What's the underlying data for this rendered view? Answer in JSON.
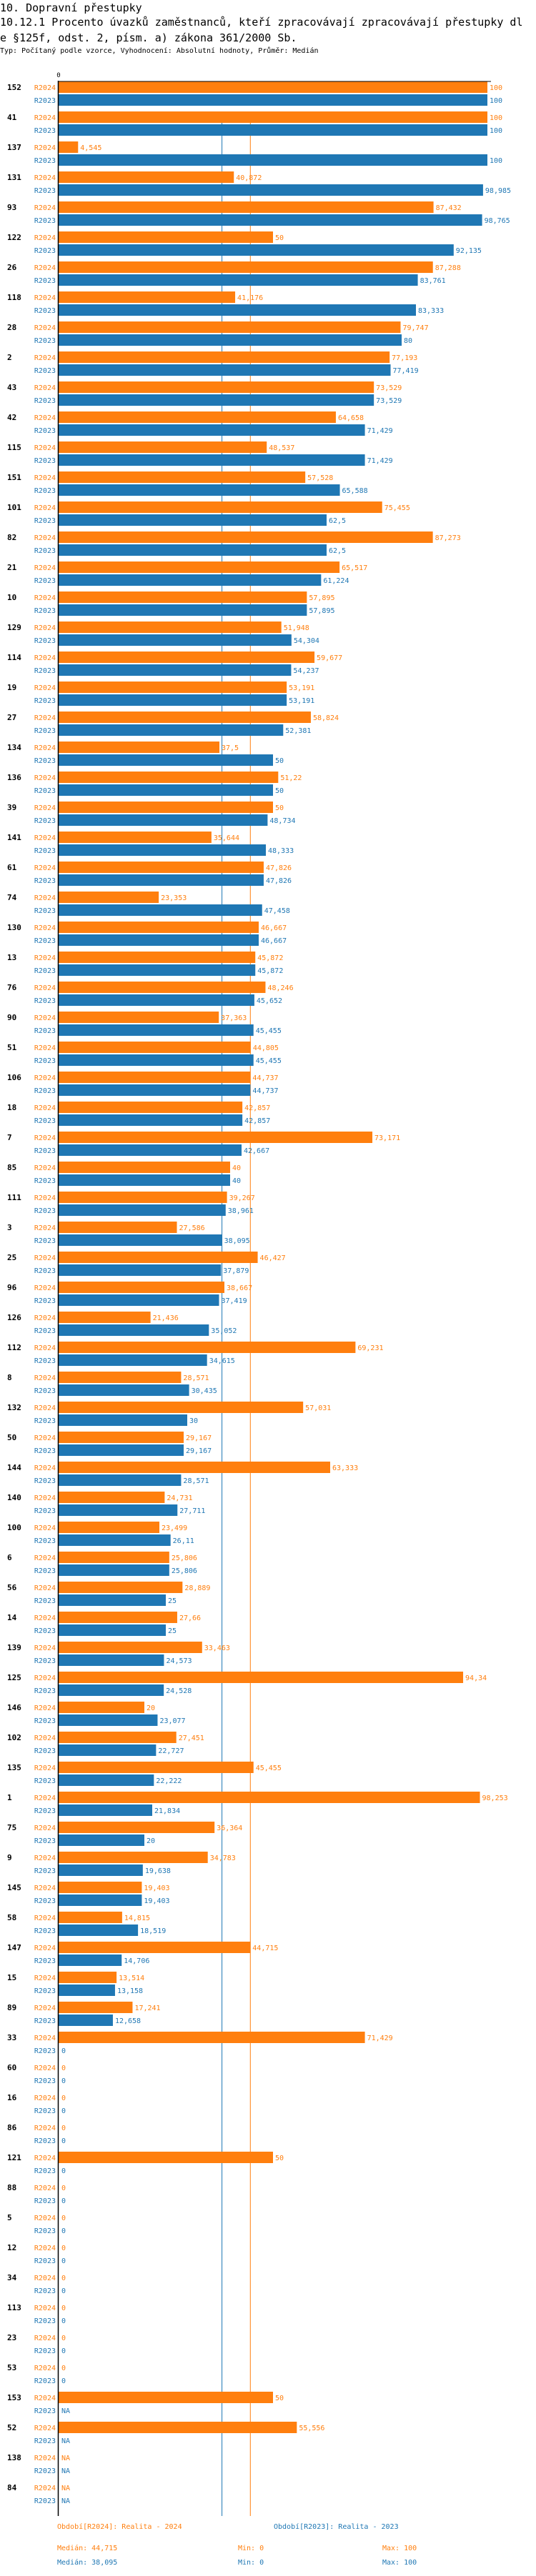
{
  "header": {
    "title": "10. Dopravní přestupky",
    "subtitle": "10.12.1 Procento úvazků zaměstnanců, kteří zpracovávají zpracovávají přestupky dle §125f, odst. 2, písm. a) zákona 361/2000 Sb.",
    "meta": "Typ: Počítaný podle vzorce, Vyhodnocení: Absolutní hodnoty, Průměr: Medián"
  },
  "colors": {
    "R2024": "#ff7f0e",
    "R2023": "#1f77b4",
    "axis": "#000000"
  },
  "chart_data": {
    "type": "bar",
    "orientation": "horizontal",
    "axis_tick_label": "0",
    "xlim": [
      0,
      100
    ],
    "grid": false,
    "categories": [
      "152",
      "41",
      "137",
      "131",
      "93",
      "122",
      "26",
      "118",
      "28",
      "2",
      "43",
      "42",
      "115",
      "151",
      "101",
      "82",
      "21",
      "10",
      "129",
      "114",
      "19",
      "27",
      "134",
      "136",
      "39",
      "141",
      "61",
      "74",
      "130",
      "13",
      "76",
      "90",
      "51",
      "106",
      "18",
      "7",
      "85",
      "111",
      "3",
      "25",
      "96",
      "126",
      "112",
      "8",
      "132",
      "50",
      "144",
      "140",
      "100",
      "6",
      "56",
      "14",
      "139",
      "125",
      "146",
      "102",
      "135",
      "1",
      "75",
      "9",
      "145",
      "58",
      "147",
      "15",
      "89",
      "33",
      "60",
      "16",
      "86",
      "121",
      "88",
      "5",
      "12",
      "34",
      "113",
      "23",
      "53",
      "153",
      "52",
      "138",
      "84"
    ],
    "series": [
      {
        "name": "R2024",
        "values": [
          "100",
          "100",
          "4,545",
          "40,872",
          "87,432",
          "50",
          "87,288",
          "41,176",
          "79,747",
          "77,193",
          "73,529",
          "64,658",
          "48,537",
          "57,528",
          "75,455",
          "87,273",
          "65,517",
          "57,895",
          "51,948",
          "59,677",
          "53,191",
          "58,824",
          "37,5",
          "51,22",
          "50",
          "35,644",
          "47,826",
          "23,353",
          "46,667",
          "45,872",
          "48,246",
          "37,363",
          "44,805",
          "44,737",
          "42,857",
          "73,171",
          "40",
          "39,267",
          "27,586",
          "46,427",
          "38,667",
          "21,436",
          "69,231",
          "28,571",
          "57,031",
          "29,167",
          "63,333",
          "24,731",
          "23,499",
          "25,806",
          "28,889",
          "27,66",
          "33,463",
          "94,34",
          "20",
          "27,451",
          "45,455",
          "98,253",
          "36,364",
          "34,783",
          "19,403",
          "14,815",
          "44,715",
          "13,514",
          "17,241",
          "71,429",
          "0",
          "0",
          "0",
          "50",
          "0",
          "0",
          "0",
          "0",
          "0",
          "0",
          "0",
          "50",
          "55,556",
          "NA",
          "NA"
        ]
      },
      {
        "name": "R2023",
        "values": [
          "100",
          "100",
          "100",
          "98,985",
          "98,765",
          "92,135",
          "83,761",
          "83,333",
          "80",
          "77,419",
          "73,529",
          "71,429",
          "71,429",
          "65,588",
          "62,5",
          "62,5",
          "61,224",
          "57,895",
          "54,304",
          "54,237",
          "53,191",
          "52,381",
          "50",
          "50",
          "48,734",
          "48,333",
          "47,826",
          "47,458",
          "46,667",
          "45,872",
          "45,652",
          "45,455",
          "45,455",
          "44,737",
          "42,857",
          "42,667",
          "40",
          "38,961",
          "38,095",
          "37,879",
          "37,419",
          "35,052",
          "34,615",
          "30,435",
          "30",
          "29,167",
          "28,571",
          "27,711",
          "26,11",
          "25,806",
          "25",
          "25",
          "24,573",
          "24,528",
          "23,077",
          "22,727",
          "22,222",
          "21,834",
          "20",
          "19,638",
          "19,403",
          "18,519",
          "14,706",
          "13,158",
          "12,658",
          "0",
          "0",
          "0",
          "0",
          "0",
          "0",
          "0",
          "0",
          "0",
          "0",
          "0",
          "0",
          "NA",
          "NA",
          "NA",
          "NA"
        ]
      }
    ],
    "median_lines": {
      "R2024": 44.715,
      "R2023": 38.095
    }
  },
  "legend": {
    "r2024": "Období[R2024]: Realita - 2024",
    "r2023": "Období[R2023]: Realita - 2023",
    "r2024_median": "Medián: 44,715",
    "r2024_min": "Min: 0",
    "r2024_max": "Max: 100",
    "r2023_median": "Medián: 38,095",
    "r2023_min": "Min: 0",
    "r2023_max": "Max: 100"
  }
}
